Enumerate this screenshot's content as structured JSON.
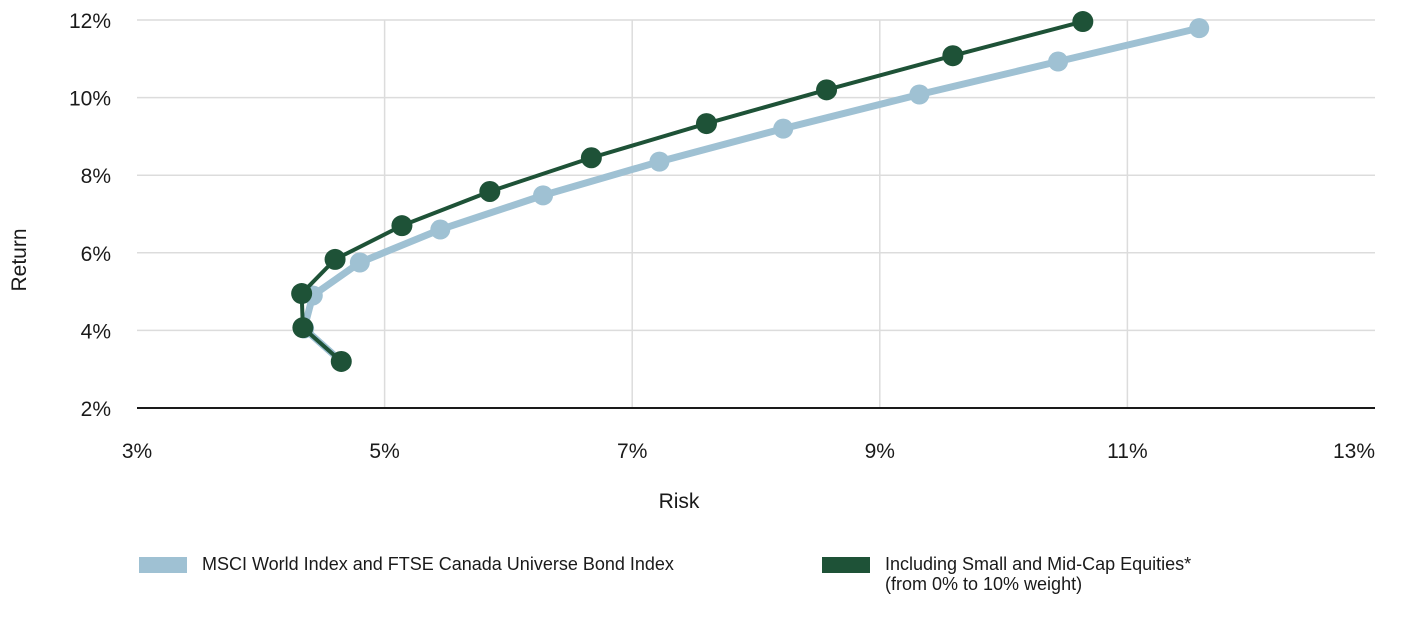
{
  "colors": {
    "series1": "#9fc1d3",
    "series2": "#1e5237",
    "grid": "#dcdcdc",
    "axis": "#1a1a1a"
  },
  "chart_data": {
    "type": "line",
    "xlabel": "Risk",
    "ylabel": "Return",
    "xlim": [
      3,
      13
    ],
    "ylim": [
      2,
      12
    ],
    "xticks": [
      3,
      5,
      7,
      9,
      11,
      13
    ],
    "yticks": [
      2,
      4,
      6,
      8,
      10,
      12
    ],
    "xtick_labels": [
      "3%",
      "5%",
      "7%",
      "9%",
      "11%",
      "13%"
    ],
    "ytick_labels": [
      "2%",
      "4%",
      "6%",
      "8%",
      "10%",
      "12%"
    ],
    "grid": "vertical and horizontal",
    "legend_position": "bottom",
    "series": [
      {
        "name": "MSCI World Index and FTSE Canada Universe Bond Index",
        "color": "#9fc1d3",
        "points": [
          [
            4.65,
            3.2
          ],
          [
            4.35,
            4.05
          ],
          [
            4.42,
            4.9
          ],
          [
            4.8,
            5.75
          ],
          [
            5.45,
            6.6
          ],
          [
            6.28,
            7.48
          ],
          [
            7.22,
            8.35
          ],
          [
            8.22,
            9.2
          ],
          [
            9.32,
            10.08
          ],
          [
            10.44,
            10.93
          ],
          [
            11.58,
            11.79
          ]
        ]
      },
      {
        "name": "Including Small and Mid-Cap Equities*",
        "name_line2": "(from 0% to 10% weight)",
        "color": "#1e5237",
        "points": [
          [
            4.65,
            3.2
          ],
          [
            4.34,
            4.07
          ],
          [
            4.33,
            4.95
          ],
          [
            4.6,
            5.83
          ],
          [
            5.14,
            6.7
          ],
          [
            5.85,
            7.58
          ],
          [
            6.67,
            8.45
          ],
          [
            7.6,
            9.33
          ],
          [
            8.57,
            10.2
          ],
          [
            9.59,
            11.08
          ],
          [
            10.64,
            11.96
          ]
        ]
      }
    ]
  }
}
